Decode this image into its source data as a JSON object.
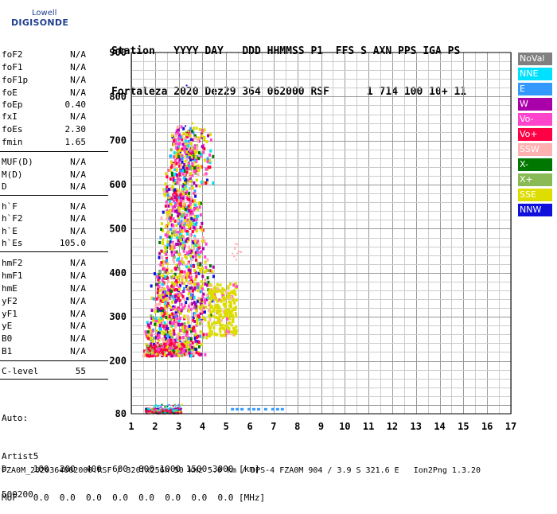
{
  "logo": {
    "lowell": "Lowell",
    "digisonde": "DIGISONDE"
  },
  "header": {
    "line1": "Station   YYYY DAY   DDD HHMMSS P1  FFS S AXN PPS IGA PS",
    "line2": "Fortaleza 2020 Dez29 364 062000 RSF      1 714 100 10+ 11"
  },
  "params": [
    {
      "label": "foF2",
      "value": "N/A"
    },
    {
      "label": "foF1",
      "value": "N/A"
    },
    {
      "label": "foF1p",
      "value": "N/A"
    },
    {
      "label": "foE",
      "value": "N/A"
    },
    {
      "label": "foEp",
      "value": "0.40"
    },
    {
      "label": "fxI",
      "value": "N/A"
    },
    {
      "label": "foEs",
      "value": "2.30"
    },
    {
      "label": "fmin",
      "value": "1.65"
    },
    {
      "label": "MUF(D)",
      "value": "N/A"
    },
    {
      "label": "M(D)",
      "value": "N/A"
    },
    {
      "label": "D",
      "value": "N/A"
    },
    {
      "label": "h`F",
      "value": "N/A"
    },
    {
      "label": "h`F2",
      "value": "N/A"
    },
    {
      "label": "h`E",
      "value": "N/A"
    },
    {
      "label": "h`Es",
      "value": "105.0"
    },
    {
      "label": "hmF2",
      "value": "N/A"
    },
    {
      "label": "hmF1",
      "value": "N/A"
    },
    {
      "label": "hmE",
      "value": "N/A"
    },
    {
      "label": "yF2",
      "value": "N/A"
    },
    {
      "label": "yF1",
      "value": "N/A"
    },
    {
      "label": "yE",
      "value": "N/A"
    },
    {
      "label": "B0",
      "value": "N/A"
    },
    {
      "label": "B1",
      "value": "N/A"
    }
  ],
  "clevel": {
    "label": "C-level",
    "value": "55"
  },
  "auto": {
    "line1": "Auto:",
    "line2": "Artist5",
    "line3": "500200"
  },
  "footer": {
    "line1": "D     100  200  400  600  800 1000 1500 3000 [km]",
    "line2": "MUF   0.0  0.0  0.0  0.0  0.0  0.0  0.0  0.0 [MHz]"
  },
  "info": "FZA0M_2020364062000.RSF / 320fx256h 50 kHz 5.0 km / DPS-4 FZA0M 904 / 3.9 S 321.6 E   Ion2Png 1.3.20",
  "legend": [
    {
      "label": "NoVal",
      "color": "#808080"
    },
    {
      "label": "NNE",
      "color": "#00e0ff"
    },
    {
      "label": "E",
      "color": "#3399ff"
    },
    {
      "label": "W",
      "color": "#aa00aa"
    },
    {
      "label": "Vo-",
      "color": "#ff44cc"
    },
    {
      "label": "Vo+",
      "color": "#ff0044"
    },
    {
      "label": "SSW",
      "color": "#ffb0b0"
    },
    {
      "label": "X-",
      "color": "#007700"
    },
    {
      "label": "X+",
      "color": "#88bb55"
    },
    {
      "label": "SSE",
      "color": "#dddd00"
    },
    {
      "label": "NNW",
      "color": "#1010dd"
    }
  ],
  "chart_data": {
    "type": "scatter",
    "xlim": [
      1,
      17
    ],
    "ylim": [
      80,
      900
    ],
    "x_ticks": [
      1,
      2,
      3,
      4,
      5,
      6,
      7,
      8,
      9,
      10,
      11,
      12,
      13,
      14,
      15,
      16,
      17
    ],
    "y_ticks": [
      80,
      200,
      300,
      400,
      500,
      600,
      700,
      800,
      900
    ],
    "grid": true,
    "clusters": [
      {
        "name": "Es trace",
        "freq": [
          1.6,
          3.0
        ],
        "height": [
          82,
          95
        ]
      },
      {
        "name": "E-region dots",
        "freq": [
          5.2,
          7.3
        ],
        "height": [
          92,
          94
        ]
      },
      {
        "name": "F-region",
        "freq": [
          1.5,
          5.3
        ],
        "height": [
          210,
          740
        ]
      }
    ]
  }
}
